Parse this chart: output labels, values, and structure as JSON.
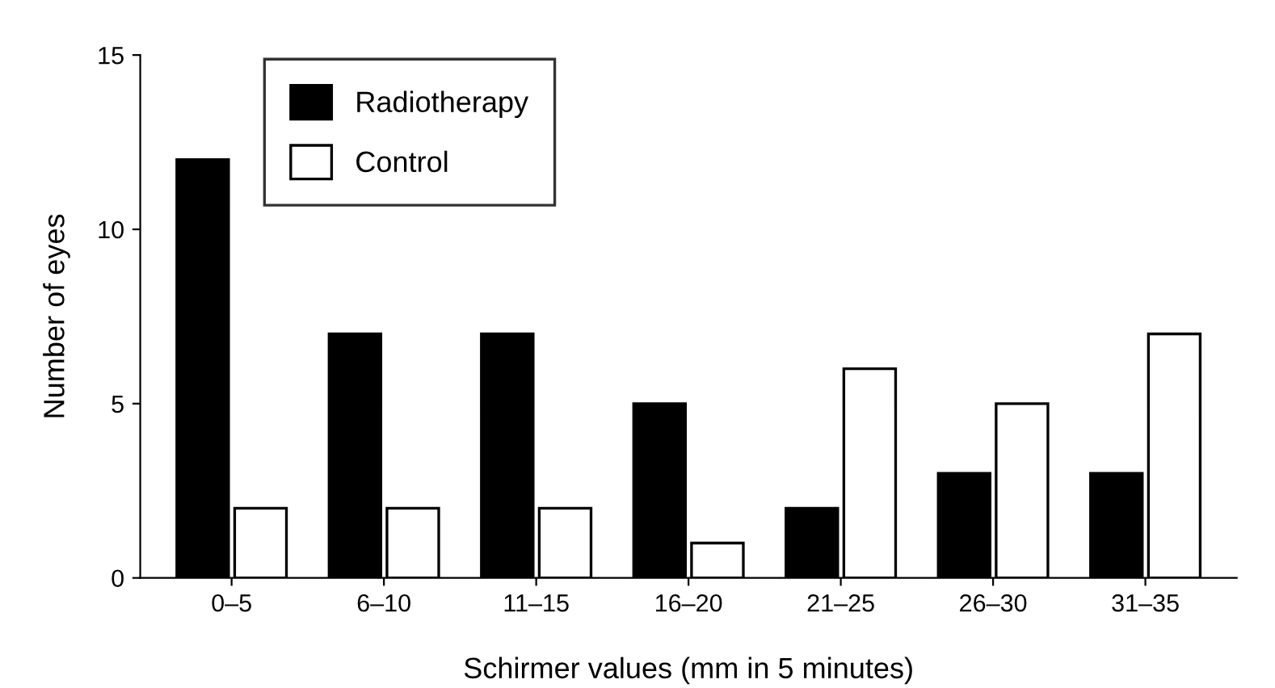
{
  "chart_data": {
    "type": "bar",
    "xlabel": "Schirmer values (mm in 5 minutes)",
    "ylabel": "Number of eyes",
    "categories": [
      "0–5",
      "6–10",
      "11–15",
      "16–20",
      "21–25",
      "26–30",
      "31–35"
    ],
    "series": [
      {
        "name": "Radiotherapy",
        "color": "#000000",
        "values": [
          12,
          7,
          7,
          5,
          2,
          3,
          3
        ]
      },
      {
        "name": "Control",
        "color": "#ffffff",
        "values": [
          2,
          2,
          2,
          1,
          6,
          5,
          7
        ]
      }
    ],
    "ylim": [
      0,
      15
    ],
    "yticks": [
      0,
      5,
      10,
      15
    ],
    "grid": false,
    "legend": "top left"
  }
}
